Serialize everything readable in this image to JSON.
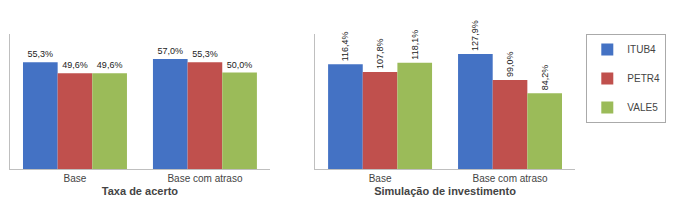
{
  "chart_data": [
    {
      "type": "bar",
      "xlabel": "Taxa de acerto",
      "categories": [
        "Base",
        "Base com atraso"
      ],
      "series": [
        {
          "name": "ITUB4",
          "color": "#4472C4",
          "values": [
            55.3,
            57.0
          ],
          "value_labels": [
            "55,3%",
            "57,0%"
          ]
        },
        {
          "name": "PETR4",
          "color": "#C0504D",
          "values": [
            49.6,
            55.3
          ],
          "value_labels": [
            "49,6%",
            "55,3%"
          ]
        },
        {
          "name": "VALE5",
          "color": "#9BBB59",
          "values": [
            49.6,
            50.0
          ],
          "value_labels": [
            "49,6%",
            "50,0%"
          ]
        }
      ],
      "ylim": [
        0,
        70
      ],
      "yticks": [],
      "grid": false,
      "tick_labels": "x",
      "data_labels": true
    },
    {
      "type": "bar",
      "xlabel": "Simulação de investimento",
      "categories": [
        "Base",
        "Base com atraso"
      ],
      "series": [
        {
          "name": "ITUB4",
          "color": "#4472C4",
          "values": [
            116.4,
            127.9
          ],
          "value_labels": [
            "116,4%",
            "127,9%"
          ]
        },
        {
          "name": "PETR4",
          "color": "#C0504D",
          "values": [
            107.8,
            99.0
          ],
          "value_labels": [
            "107,8%",
            "99,0%"
          ]
        },
        {
          "name": "VALE5",
          "color": "#9BBB59",
          "values": [
            118.1,
            84.2
          ],
          "value_labels": [
            "118,1%",
            "84,2%"
          ]
        }
      ],
      "ylim": [
        0,
        150
      ],
      "yticks": [],
      "grid": false,
      "tick_labels": "x",
      "data_labels": true,
      "legend": "upper right"
    }
  ]
}
